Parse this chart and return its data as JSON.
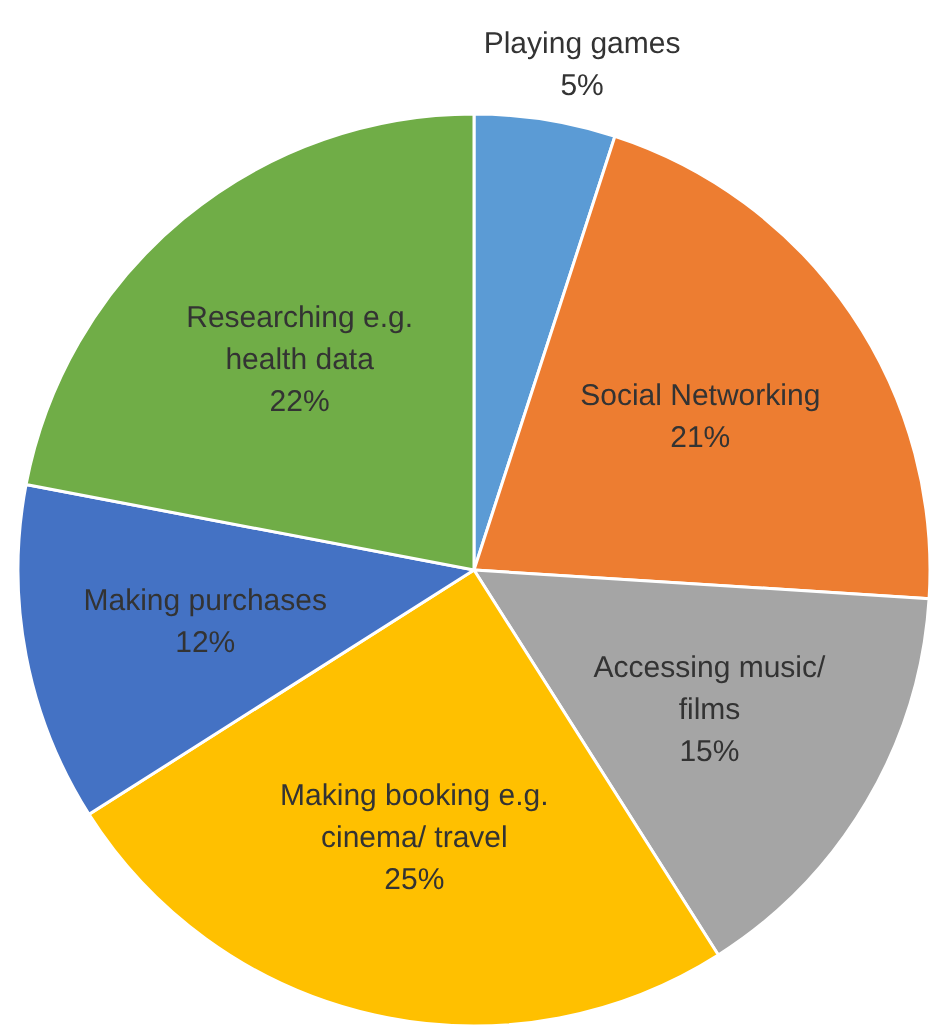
{
  "chart_data": {
    "type": "pie",
    "categories": [
      "Playing games",
      "Social Networking",
      "Accessing music/ films",
      "Making booking e.g. cinema/ travel",
      "Making purchases",
      "Researching e.g. health data"
    ],
    "values": [
      5,
      21,
      15,
      25,
      12,
      22
    ],
    "value_labels": [
      "5%",
      "21%",
      "15%",
      "25%",
      "12%",
      "22%"
    ],
    "colors": [
      "#5b9bd5",
      "#ed7d31",
      "#a5a5a5",
      "#ffc000",
      "#4472c4",
      "#70ad47"
    ]
  }
}
